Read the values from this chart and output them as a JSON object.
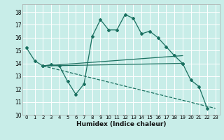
{
  "xlabel": "Humidex (Indice chaleur)",
  "bg_color": "#c8ede8",
  "grid_color": "#ffffff",
  "line_color": "#1a7060",
  "xlim": [
    -0.5,
    23.5
  ],
  "ylim": [
    10,
    18.6
  ],
  "yticks": [
    10,
    11,
    12,
    13,
    14,
    15,
    16,
    17,
    18
  ],
  "xticks": [
    0,
    1,
    2,
    3,
    4,
    5,
    6,
    7,
    8,
    9,
    10,
    11,
    12,
    13,
    14,
    15,
    16,
    17,
    18,
    19,
    20,
    21,
    22,
    23
  ],
  "curve1_x": [
    0,
    1,
    2,
    3,
    4,
    5,
    6,
    7,
    8,
    9,
    10,
    11,
    12,
    13,
    14,
    15,
    16,
    17,
    18,
    19,
    20,
    21,
    22
  ],
  "curve1_y": [
    15.2,
    14.2,
    13.8,
    13.9,
    13.8,
    12.6,
    11.6,
    12.4,
    16.1,
    17.4,
    16.6,
    16.6,
    17.8,
    17.5,
    16.3,
    16.5,
    16.0,
    15.3,
    14.6,
    14.0,
    12.7,
    12.2,
    10.5
  ],
  "curve2_x": [
    2,
    19
  ],
  "curve2_y": [
    13.8,
    14.0
  ],
  "curve3_x": [
    2,
    19
  ],
  "curve3_y": [
    13.8,
    14.6
  ],
  "curve4_x": [
    2,
    23
  ],
  "curve4_y": [
    13.8,
    10.5
  ]
}
